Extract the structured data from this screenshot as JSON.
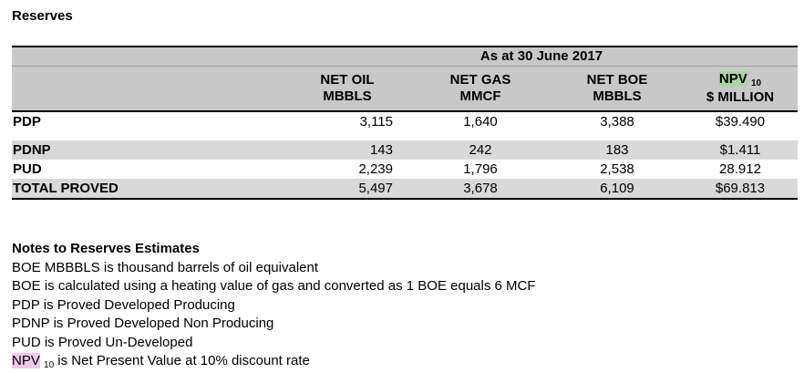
{
  "title": "Reserves",
  "table": {
    "group_header": "As at 30 June 2017",
    "columns": [
      {
        "line1": "NET OIL",
        "line2": "MBBLS"
      },
      {
        "line1": "NET GAS",
        "line2": "MMCF"
      },
      {
        "line1": "NET BOE",
        "line2": "MBBLS"
      },
      {
        "line1a": "NPV",
        "line1b": "10",
        "line2": "$ MILLION"
      }
    ],
    "rows": [
      {
        "label": "PDP",
        "values": [
          "3,115",
          "1,640",
          "3,388",
          "$39.490"
        ]
      },
      {
        "label": "PDNP",
        "values": [
          "143",
          "242",
          "183",
          "$1.411"
        ]
      },
      {
        "label": "PUD",
        "values": [
          "2,239",
          "1,796",
          "2,538",
          "28.912"
        ]
      },
      {
        "label": "TOTAL PROVED",
        "values": [
          "5,497",
          "3,678",
          "6,109",
          "$69.813"
        ]
      }
    ]
  },
  "notes": {
    "title": "Notes to Reserves Estimates",
    "lines": [
      "BOE MBBBLS is thousand barrels of oil equivalent",
      "BOE is calculated using a heating value of gas and converted as 1 BOE equals 6 MCF",
      "PDP is Proved Developed Producing",
      "PDNP is Proved Developed Non Producing",
      "PUD is Proved Un-Developed"
    ],
    "npv_line": {
      "term": "NPV",
      "sub": "10",
      "rest": " is Net Present Value at 10% discount rate"
    }
  }
}
